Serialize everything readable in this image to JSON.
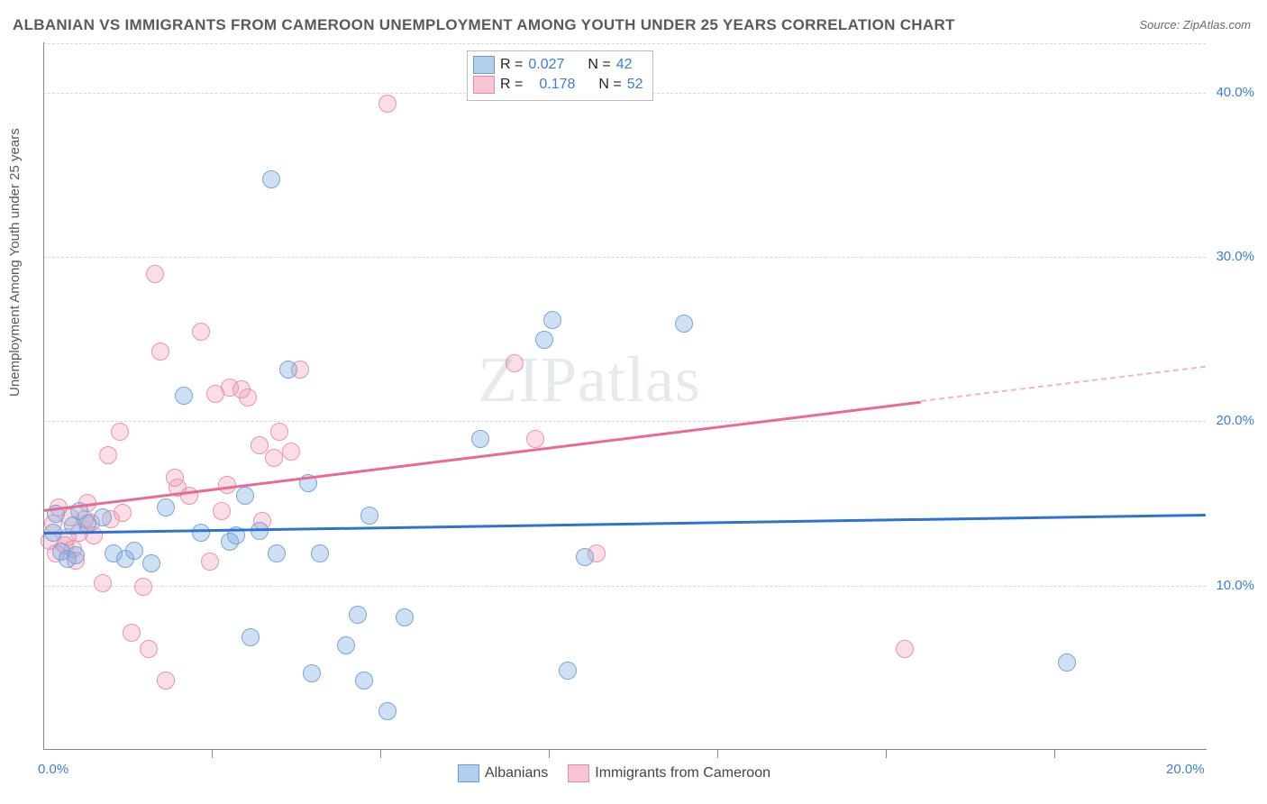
{
  "title": "ALBANIAN VS IMMIGRANTS FROM CAMEROON UNEMPLOYMENT AMONG YOUTH UNDER 25 YEARS CORRELATION CHART",
  "source": "Source: ZipAtlas.com",
  "ylabel": "Unemployment Among Youth under 25 years",
  "watermark": "ZIPatlas",
  "chart": {
    "type": "scatter",
    "xlim": [
      0,
      20
    ],
    "ylim": [
      0,
      43
    ],
    "xticks": [
      {
        "v": 0,
        "label": "0.0%"
      },
      {
        "v": 20,
        "label": "20.0%"
      }
    ],
    "xticks_minor": [
      2.9,
      5.8,
      8.7,
      11.6,
      14.5,
      17.4
    ],
    "yticks": [
      {
        "v": 10,
        "label": "10.0%"
      },
      {
        "v": 20,
        "label": "20.0%"
      },
      {
        "v": 30,
        "label": "30.0%"
      },
      {
        "v": 40,
        "label": "40.0%"
      }
    ],
    "background_color": "#ffffff",
    "grid_color": "#d6d6d6",
    "axis_color": "#888888",
    "series": {
      "albanians": {
        "label": "Albanians",
        "color_fill": "rgba(114,168,224,0.35)",
        "color_stroke": "#7aa5d8",
        "line_color": "#2e73d0",
        "R": "0.027",
        "N": "42",
        "reg": {
          "x1": 0,
          "y1": 13.2,
          "x2": 20,
          "y2": 14.3
        },
        "points": [
          [
            0.15,
            13.3
          ],
          [
            0.2,
            14.4
          ],
          [
            0.3,
            12.1
          ],
          [
            0.4,
            11.7
          ],
          [
            0.5,
            13.7
          ],
          [
            0.55,
            11.9
          ],
          [
            0.6,
            14.6
          ],
          [
            0.75,
            13.8
          ],
          [
            1.0,
            14.2
          ],
          [
            1.2,
            12.0
          ],
          [
            1.4,
            11.7
          ],
          [
            1.55,
            12.2
          ],
          [
            1.85,
            11.4
          ],
          [
            2.1,
            14.8
          ],
          [
            2.4,
            21.6
          ],
          [
            2.7,
            13.3
          ],
          [
            3.2,
            12.7
          ],
          [
            3.3,
            13.1
          ],
          [
            3.45,
            15.5
          ],
          [
            3.55,
            6.9
          ],
          [
            3.7,
            13.4
          ],
          [
            3.9,
            34.8
          ],
          [
            4.0,
            12.0
          ],
          [
            4.2,
            23.2
          ],
          [
            4.55,
            16.3
          ],
          [
            4.6,
            4.7
          ],
          [
            4.75,
            12.0
          ],
          [
            5.2,
            6.4
          ],
          [
            5.4,
            8.3
          ],
          [
            5.5,
            4.3
          ],
          [
            5.6,
            14.3
          ],
          [
            5.9,
            2.4
          ],
          [
            6.2,
            8.1
          ],
          [
            7.5,
            19.0
          ],
          [
            8.6,
            25.0
          ],
          [
            8.75,
            26.2
          ],
          [
            9.0,
            4.9
          ],
          [
            9.3,
            11.8
          ],
          [
            11.0,
            26.0
          ],
          [
            17.6,
            5.4
          ]
        ]
      },
      "cameroon": {
        "label": "Immigrants from Cameroon",
        "color_fill": "rgba(240,150,175,0.32)",
        "color_stroke": "#e994af",
        "line_color": "#e86b92",
        "R": "0.178",
        "N": "52",
        "reg_solid": {
          "x1": 0,
          "y1": 14.6,
          "x2": 15.1,
          "y2": 21.2
        },
        "reg_dash": {
          "x1": 15.1,
          "y1": 21.2,
          "x2": 20,
          "y2": 23.3
        },
        "points": [
          [
            0.1,
            12.8
          ],
          [
            0.15,
            13.8
          ],
          [
            0.2,
            12.0
          ],
          [
            0.25,
            14.8
          ],
          [
            0.35,
            12.5
          ],
          [
            0.4,
            13.0
          ],
          [
            0.45,
            14.2
          ],
          [
            0.5,
            12.3
          ],
          [
            0.55,
            11.6
          ],
          [
            0.6,
            13.3
          ],
          [
            0.7,
            14.1
          ],
          [
            0.75,
            15.1
          ],
          [
            0.8,
            13.9
          ],
          [
            0.85,
            13.1
          ],
          [
            1.0,
            10.2
          ],
          [
            1.1,
            18.0
          ],
          [
            1.15,
            14.1
          ],
          [
            1.3,
            19.4
          ],
          [
            1.35,
            14.5
          ],
          [
            1.5,
            7.2
          ],
          [
            1.7,
            10.0
          ],
          [
            1.8,
            6.2
          ],
          [
            1.9,
            29.0
          ],
          [
            2.0,
            24.3
          ],
          [
            2.1,
            4.3
          ],
          [
            2.25,
            16.6
          ],
          [
            2.3,
            16.0
          ],
          [
            2.5,
            15.5
          ],
          [
            2.7,
            25.5
          ],
          [
            2.85,
            11.5
          ],
          [
            2.95,
            21.7
          ],
          [
            3.05,
            14.6
          ],
          [
            3.15,
            16.2
          ],
          [
            3.2,
            22.1
          ],
          [
            3.4,
            22.0
          ],
          [
            3.5,
            21.5
          ],
          [
            3.7,
            18.6
          ],
          [
            3.75,
            14.0
          ],
          [
            3.95,
            17.8
          ],
          [
            4.05,
            19.4
          ],
          [
            4.25,
            18.2
          ],
          [
            4.4,
            23.2
          ],
          [
            5.9,
            39.4
          ],
          [
            8.1,
            23.6
          ],
          [
            8.45,
            19.0
          ],
          [
            9.5,
            12.0
          ],
          [
            14.8,
            6.2
          ]
        ]
      }
    }
  },
  "stats": {
    "rows": [
      {
        "swatch": "blue",
        "r_label": "R =",
        "r_val": "0.027",
        "n_label": "N =",
        "n_val": "42"
      },
      {
        "swatch": "pink",
        "r_label": "R =",
        "r_val": "0.178",
        "n_label": "N =",
        "n_val": "52"
      }
    ]
  },
  "legend": {
    "items": [
      {
        "swatch": "blue",
        "label": "Albanians"
      },
      {
        "swatch": "pink",
        "label": "Immigrants from Cameroon"
      }
    ]
  }
}
